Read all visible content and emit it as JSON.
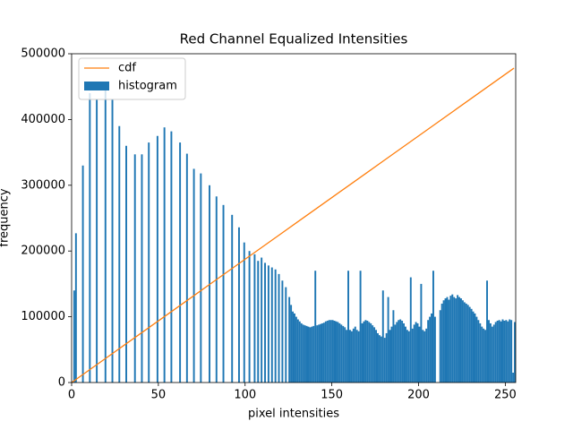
{
  "chart_data": {
    "type": "histogram",
    "title": "Red Channel Equalized Intensities",
    "xlabel": "pixel intensities",
    "ylabel": "frequency",
    "xlim": [
      0,
      256
    ],
    "xticks": [
      0,
      50,
      100,
      150,
      200,
      250
    ],
    "ylim": [
      0,
      500000
    ],
    "yticks": [
      0,
      100000,
      200000,
      300000,
      400000,
      500000
    ],
    "grid": false,
    "legend": "upper left",
    "bins": [
      0,
      1,
      2,
      3,
      4,
      5,
      6,
      7,
      8,
      9,
      10,
      11,
      12,
      13,
      14,
      15,
      16,
      17,
      18,
      19,
      20,
      21,
      22,
      23,
      24,
      25,
      26,
      27,
      28,
      29,
      30,
      31,
      32,
      33,
      34,
      35,
      36,
      37,
      38,
      39,
      40,
      41,
      42,
      43,
      44,
      45,
      46,
      47,
      48,
      49,
      50,
      51,
      52,
      53,
      54,
      55,
      56,
      57,
      58,
      59,
      60,
      61,
      62,
      63,
      64,
      65,
      66,
      67,
      68,
      69,
      70,
      71,
      72,
      73,
      74,
      75,
      76,
      77,
      78,
      79,
      80,
      81,
      82,
      83,
      84,
      85,
      86,
      87,
      88,
      89,
      90,
      91,
      92,
      93,
      94,
      95,
      96,
      97,
      98,
      99,
      100,
      101,
      102,
      103,
      104,
      105,
      106,
      107,
      108,
      109,
      110,
      111,
      112,
      113,
      114,
      115,
      116,
      117,
      118,
      119,
      120,
      121,
      122,
      123,
      124,
      125,
      126,
      127,
      128,
      129,
      130,
      131,
      132,
      133,
      134,
      135,
      136,
      137,
      138,
      139,
      140,
      141,
      142,
      143,
      144,
      145,
      146,
      147,
      148,
      149,
      150,
      151,
      152,
      153,
      154,
      155,
      156,
      157,
      158,
      159,
      160,
      161,
      162,
      163,
      164,
      165,
      166,
      167,
      168,
      169,
      170,
      171,
      172,
      173,
      174,
      175,
      176,
      177,
      178,
      179,
      180,
      181,
      182,
      183,
      184,
      185,
      186,
      187,
      188,
      189,
      190,
      191,
      192,
      193,
      194,
      195,
      196,
      197,
      198,
      199,
      200,
      201,
      202,
      203,
      204,
      205,
      206,
      207,
      208,
      209,
      210,
      211,
      212,
      213,
      214,
      215,
      216,
      217,
      218,
      219,
      220,
      221,
      222,
      223,
      224,
      225,
      226,
      227,
      228,
      229,
      230,
      231,
      232,
      233,
      234,
      235,
      236,
      237,
      238,
      239,
      240,
      241,
      242,
      243,
      244,
      245,
      246,
      247,
      248,
      249,
      250,
      251,
      252,
      253,
      254,
      255,
      256
    ],
    "series": [
      {
        "name": "cdf",
        "type": "line",
        "color": "#ff7f0e",
        "x": [
          0,
          10,
          20,
          30,
          40,
          50,
          60,
          70,
          80,
          90,
          100,
          110,
          120,
          130,
          140,
          150,
          160,
          170,
          180,
          190,
          200,
          210,
          220,
          230,
          240,
          250,
          255
        ],
        "values": [
          0,
          18750,
          37500,
          56250,
          75000,
          93750,
          112500,
          131250,
          150000,
          168750,
          187500,
          206250,
          225000,
          243750,
          262500,
          281250,
          300000,
          318750,
          337500,
          356250,
          375000,
          393750,
          412500,
          431250,
          450000,
          468750,
          478125
        ]
      },
      {
        "name": "histogram",
        "type": "histogram",
        "color": "#1f77b4",
        "values": [
          0,
          140000,
          227000,
          0,
          0,
          0,
          330000,
          0,
          0,
          0,
          440000,
          0,
          0,
          0,
          430000,
          0,
          0,
          0,
          0,
          445000,
          0,
          0,
          0,
          430000,
          0,
          0,
          0,
          390000,
          0,
          0,
          0,
          360000,
          0,
          0,
          0,
          0,
          347000,
          0,
          0,
          0,
          347000,
          0,
          0,
          0,
          365000,
          0,
          0,
          0,
          0,
          375000,
          0,
          0,
          0,
          388000,
          0,
          0,
          0,
          382000,
          0,
          0,
          0,
          0,
          365000,
          0,
          0,
          0,
          348000,
          0,
          0,
          0,
          325000,
          0,
          0,
          0,
          318000,
          0,
          0,
          0,
          0,
          300000,
          0,
          0,
          0,
          283000,
          0,
          0,
          0,
          270000,
          0,
          0,
          0,
          0,
          255000,
          0,
          0,
          0,
          236000,
          0,
          0,
          213000,
          0,
          0,
          200000,
          0,
          0,
          195000,
          0,
          185000,
          0,
          190000,
          0,
          182000,
          0,
          178000,
          0,
          175000,
          0,
          172000,
          0,
          165000,
          0,
          155000,
          0,
          145000,
          0,
          130000,
          118000,
          108000,
          105000,
          100000,
          96000,
          93000,
          90000,
          88000,
          87000,
          86000,
          85000,
          84000,
          85000,
          86000,
          170000,
          87000,
          88000,
          89000,
          90000,
          91000,
          93000,
          94000,
          95000,
          95000,
          95000,
          94000,
          93000,
          92000,
          90000,
          88000,
          86000,
          84000,
          80000,
          170000,
          80000,
          78000,
          82000,
          85000,
          80000,
          78000,
          170000,
          90000,
          93000,
          95000,
          94000,
          92000,
          90000,
          87000,
          84000,
          80000,
          75000,
          72000,
          70000,
          140000,
          68000,
          75000,
          130000,
          80000,
          85000,
          110000,
          88000,
          92000,
          95000,
          96000,
          94000,
          90000,
          85000,
          80000,
          78000,
          160000,
          82000,
          88000,
          92000,
          90000,
          85000,
          150000,
          80000,
          78000,
          82000,
          95000,
          100000,
          105000,
          170000,
          100000,
          0,
          0,
          110000,
          120000,
          125000,
          128000,
          130000,
          126000,
          132000,
          134000,
          130000,
          128000,
          133000,
          130000,
          128000,
          125000,
          122000,
          120000,
          118000,
          115000,
          112000,
          108000,
          105000,
          100000,
          95000,
          90000,
          85000,
          82000,
          80000,
          155000,
          95000,
          90000,
          85000,
          88000,
          92000,
          94000,
          95000,
          93000,
          96000,
          94000,
          95000,
          93000,
          96000,
          95000,
          15000,
          92000
        ]
      }
    ]
  }
}
